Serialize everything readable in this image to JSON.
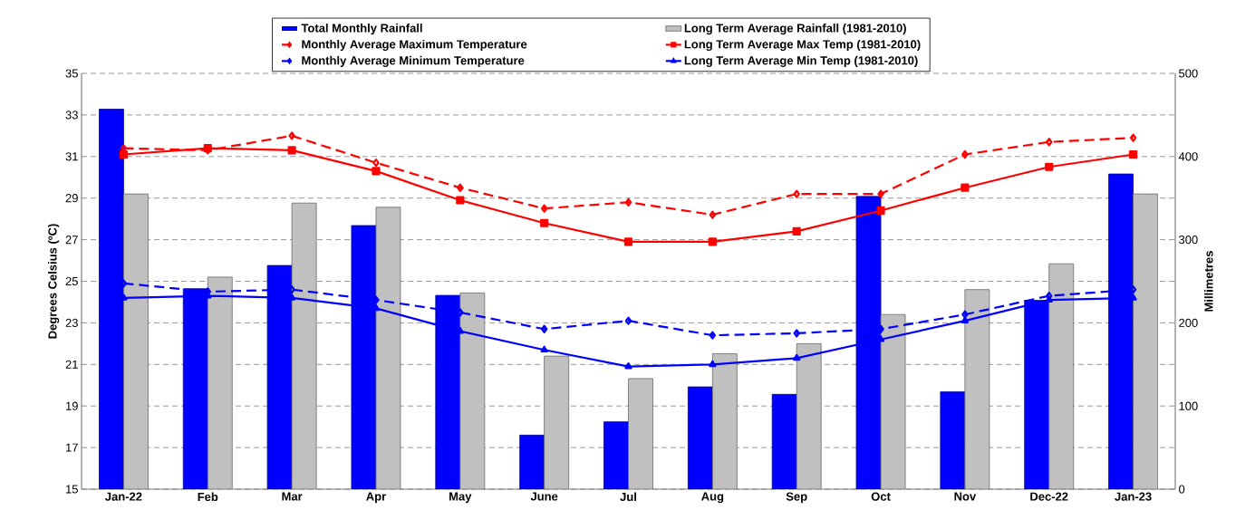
{
  "chart_data": {
    "type": "bar",
    "categories": [
      "Jan-22",
      "Feb",
      "Mar",
      "Apr",
      "May",
      "June",
      "Jul",
      "Aug",
      "Sep",
      "Oct",
      "Nov",
      "Dec-22",
      "Jan-23"
    ],
    "series": [
      {
        "name": "Total Monthly Rainfall",
        "axis": "y2",
        "color": "#0000ff",
        "values": [
          457,
          241,
          269,
          317,
          233,
          65,
          81,
          123,
          114,
          352,
          117,
          227,
          379
        ]
      },
      {
        "name": "Long Term Average Rainfall (1981-2010)",
        "axis": "y2",
        "color": "#c0c0c0",
        "values": [
          355,
          255,
          344,
          339,
          236,
          160,
          133,
          163,
          175,
          210,
          240,
          271,
          355
        ]
      },
      {
        "name": "Monthly Average Maximum Temperature",
        "type": "line",
        "color": "#ff0000",
        "marker": "diamond",
        "line_style": "dashed",
        "values": [
          31.4,
          31.3,
          32.0,
          30.7,
          29.5,
          28.5,
          28.8,
          28.2,
          29.2,
          29.2,
          31.1,
          31.7,
          31.9
        ]
      },
      {
        "name": "Long Term Average Max Temp (1981-2010)",
        "type": "line",
        "color": "#ff0000",
        "marker": "square",
        "line_style": "solid",
        "values": [
          31.1,
          31.4,
          31.3,
          30.3,
          28.9,
          27.8,
          26.9,
          26.9,
          27.4,
          28.4,
          29.5,
          30.5,
          31.1
        ]
      },
      {
        "name": "Monthly Average Minimum Temperature",
        "type": "line",
        "color": "#0000ff",
        "marker": "diamond",
        "line_style": "dashed",
        "values": [
          24.9,
          24.5,
          24.6,
          24.1,
          23.5,
          22.7,
          23.1,
          22.4,
          22.5,
          22.7,
          23.4,
          24.3,
          24.6
        ]
      },
      {
        "name": "Long Term Average Min Temp (1981-2010)",
        "type": "line",
        "color": "#0000ff",
        "marker": "triangle",
        "line_style": "solid",
        "values": [
          24.2,
          24.3,
          24.2,
          23.7,
          22.6,
          21.7,
          20.9,
          21.0,
          21.3,
          22.2,
          23.1,
          24.1,
          24.2
        ]
      }
    ],
    "ylabel": "Degrees Celsius (ºC)",
    "y2label": "Millimetres",
    "ylim": [
      15,
      35
    ],
    "yticks": [
      15,
      17,
      19,
      21,
      23,
      25,
      27,
      29,
      31,
      33,
      35
    ],
    "y2lim": [
      0,
      500
    ],
    "y2ticks": [
      0,
      100,
      200,
      300,
      400,
      500
    ],
    "grid": "y",
    "legend": "top"
  }
}
